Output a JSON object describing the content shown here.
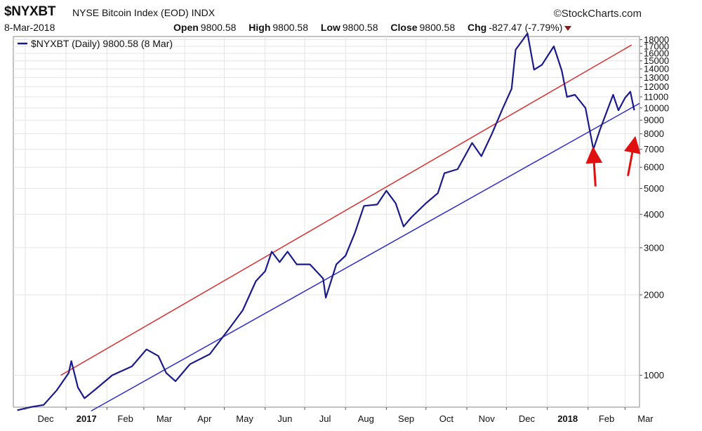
{
  "header": {
    "symbol": "$NYXBT",
    "description": "NYSE Bitcoin Index (EOD)",
    "exchange": "INDX",
    "brand": "©StockCharts.com",
    "date": "8-Mar-2018",
    "open_label": "Open",
    "open": "9800.58",
    "high_label": "High",
    "high": "9800.58",
    "low_label": "Low",
    "low": "9800.58",
    "close_label": "Close",
    "close": "9800.58",
    "chg_label": "Chg",
    "chg": "-827.47 (-7.79%)"
  },
  "chart_data": {
    "type": "line",
    "title": "",
    "legend": {
      "text": "$NYXBT (Daily) 9800.58 (8 Mar)",
      "placement": "top-left"
    },
    "y_scale": "log",
    "ylim": [
      760,
      18500
    ],
    "y_ticks": [
      1000,
      2000,
      3000,
      4000,
      5000,
      6000,
      7000,
      8000,
      9000,
      10000,
      11000,
      12000,
      13000,
      14000,
      15000,
      16000,
      17000,
      18000
    ],
    "x_tick_labels": [
      "Dec",
      "2017",
      "Feb",
      "Mar",
      "Apr",
      "May",
      "Jun",
      "Jul",
      "Aug",
      "Sep",
      "Oct",
      "Nov",
      "Dec",
      "2018",
      "Feb",
      "Mar"
    ],
    "grid": true,
    "colors": {
      "price": "#1a1a8c",
      "upper_channel": "#d83030",
      "lower_channel": "#2e2ec8",
      "arrows": "#e01010"
    },
    "series": [
      {
        "name": "$NYXBT (Daily)",
        "points": [
          [
            "2016-11-25",
            740
          ],
          [
            "2016-12-05",
            760
          ],
          [
            "2016-12-15",
            775
          ],
          [
            "2016-12-25",
            880
          ],
          [
            "2017-01-03",
            1020
          ],
          [
            "2017-01-05",
            1130
          ],
          [
            "2017-01-10",
            900
          ],
          [
            "2017-01-15",
            820
          ],
          [
            "2017-01-25",
            900
          ],
          [
            "2017-02-05",
            1000
          ],
          [
            "2017-02-20",
            1080
          ],
          [
            "2017-03-03",
            1250
          ],
          [
            "2017-03-12",
            1180
          ],
          [
            "2017-03-18",
            1020
          ],
          [
            "2017-03-25",
            950
          ],
          [
            "2017-04-05",
            1100
          ],
          [
            "2017-04-20",
            1200
          ],
          [
            "2017-05-05",
            1500
          ],
          [
            "2017-05-15",
            1750
          ],
          [
            "2017-05-25",
            2250
          ],
          [
            "2017-06-01",
            2450
          ],
          [
            "2017-06-06",
            2900
          ],
          [
            "2017-06-12",
            2650
          ],
          [
            "2017-06-18",
            2900
          ],
          [
            "2017-06-25",
            2600
          ],
          [
            "2017-07-05",
            2600
          ],
          [
            "2017-07-15",
            2300
          ],
          [
            "2017-07-17",
            1950
          ],
          [
            "2017-07-25",
            2600
          ],
          [
            "2017-08-01",
            2800
          ],
          [
            "2017-08-08",
            3400
          ],
          [
            "2017-08-15",
            4300
          ],
          [
            "2017-08-25",
            4350
          ],
          [
            "2017-09-01",
            4900
          ],
          [
            "2017-09-08",
            4400
          ],
          [
            "2017-09-14",
            3600
          ],
          [
            "2017-09-20",
            3900
          ],
          [
            "2017-10-01",
            4400
          ],
          [
            "2017-10-10",
            4800
          ],
          [
            "2017-10-15",
            5700
          ],
          [
            "2017-10-25",
            5900
          ],
          [
            "2017-11-05",
            7400
          ],
          [
            "2017-11-12",
            6600
          ],
          [
            "2017-11-20",
            8000
          ],
          [
            "2017-11-28",
            9900
          ],
          [
            "2017-12-05",
            11800
          ],
          [
            "2017-12-08",
            16500
          ],
          [
            "2017-12-17",
            19000
          ],
          [
            "2017-12-22",
            13900
          ],
          [
            "2017-12-28",
            14500
          ],
          [
            "2018-01-06",
            17000
          ],
          [
            "2018-01-12",
            13800
          ],
          [
            "2018-01-16",
            11000
          ],
          [
            "2018-01-22",
            11200
          ],
          [
            "2018-01-30",
            10000
          ],
          [
            "2018-02-05",
            7000
          ],
          [
            "2018-02-10",
            8300
          ],
          [
            "2018-02-20",
            11200
          ],
          [
            "2018-02-24",
            9800
          ],
          [
            "2018-03-01",
            10900
          ],
          [
            "2018-03-05",
            11500
          ],
          [
            "2018-03-08",
            9800
          ]
        ]
      },
      {
        "name": "",
        "role": "upper_channel",
        "points": [
          [
            "2016-12-28",
            1000
          ],
          [
            "2018-03-06",
            17200
          ]
        ]
      },
      {
        "name": "",
        "role": "lower_channel",
        "points": [
          [
            "2017-01-20",
            735
          ],
          [
            "2018-03-12",
            10400
          ]
        ]
      }
    ],
    "annotations": [
      {
        "type": "arrow",
        "target_date": "2018-02-05",
        "target_value": 7400
      },
      {
        "type": "arrow",
        "target_date": "2018-03-08",
        "target_value": 8100
      }
    ]
  }
}
